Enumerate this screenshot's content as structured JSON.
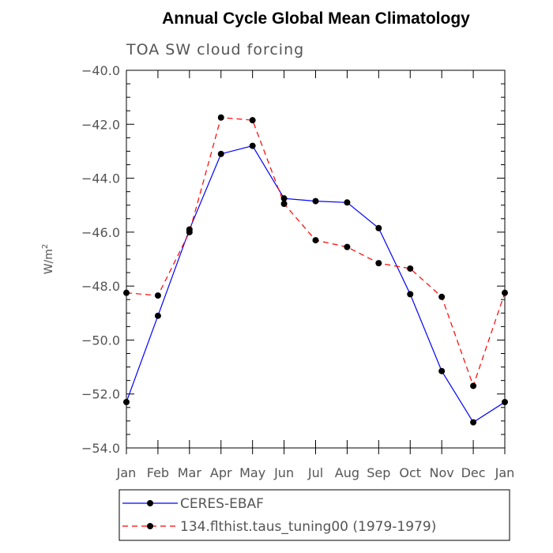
{
  "chart_data": {
    "type": "line",
    "title": "Annual Cycle Global Mean Climatology",
    "subtitle": "TOA SW cloud forcing",
    "ylabel": "W/m",
    "ylabel_sup": "2",
    "categories": [
      "Jan",
      "Feb",
      "Mar",
      "Apr",
      "May",
      "Jun",
      "Jul",
      "Aug",
      "Sep",
      "Oct",
      "Nov",
      "Dec",
      "Jan"
    ],
    "ylim": [
      -54.0,
      -40.0
    ],
    "yticks": [
      "-40.0",
      "-42.0",
      "-44.0",
      "-46.0",
      "-48.0",
      "-50.0",
      "-52.0",
      "-54.0"
    ],
    "ytick_values": [
      -40,
      -42,
      -44,
      -46,
      -48,
      -50,
      -52,
      -54
    ],
    "series": [
      {
        "name": "CERES-EBAF",
        "color": "#0000ff",
        "dash": "solid",
        "values": [
          -52.3,
          -49.1,
          -45.9,
          -43.1,
          -42.8,
          -44.75,
          -44.85,
          -44.9,
          -45.85,
          -48.3,
          -51.15,
          -53.05,
          -52.3
        ]
      },
      {
        "name": "134.flthist.taus_tuning00 (1979-1979)",
        "color": "#ff0000",
        "dash": "dashed",
        "values": [
          -48.25,
          -48.35,
          -46.0,
          -41.75,
          -41.85,
          -44.95,
          -46.3,
          -46.55,
          -47.15,
          -47.35,
          -48.4,
          -51.7,
          -48.25
        ]
      }
    ]
  }
}
